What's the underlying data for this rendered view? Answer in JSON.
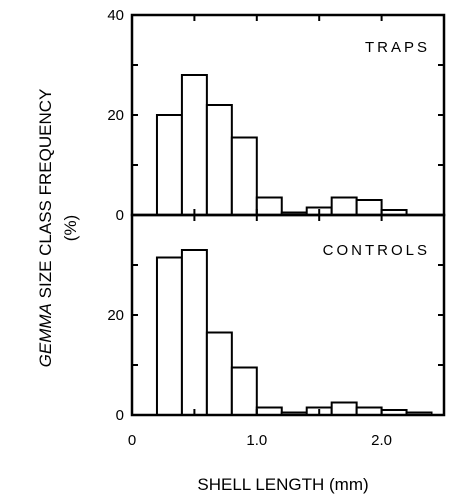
{
  "chart_data": [
    {
      "type": "bar",
      "panel_label": "TRAPS",
      "x_bin_starts": [
        0.2,
        0.4,
        0.6,
        0.8,
        1.0,
        1.2,
        1.4,
        1.6,
        1.8,
        2.0,
        2.2
      ],
      "bin_width": 0.2,
      "values": [
        20,
        28,
        22,
        15.5,
        3.5,
        0.5,
        1.5,
        3.5,
        3,
        1,
        0
      ],
      "ylim": [
        0,
        40
      ],
      "yticks": [
        "0",
        "20",
        "40"
      ]
    },
    {
      "type": "bar",
      "panel_label": "CONTROLS",
      "x_bin_starts": [
        0.2,
        0.4,
        0.6,
        0.8,
        1.0,
        1.2,
        1.4,
        1.6,
        1.8,
        2.0,
        2.2
      ],
      "bin_width": 0.2,
      "values": [
        31.5,
        33,
        16.5,
        9.5,
        1.5,
        0.5,
        1.5,
        2.5,
        1.5,
        1,
        0.5
      ],
      "ylim": [
        0,
        40
      ],
      "yticks": [
        "0",
        "20"
      ]
    }
  ],
  "shared": {
    "xlim": [
      0,
      2.5
    ],
    "xticks": [
      "0",
      "1.0",
      "2.0"
    ],
    "xlabel": "SHELL LENGTH (mm)",
    "ylabel_italic": "GEMMA",
    "ylabel_rest": " SIZE CLASS FREQUENCY",
    "ylabel_line2": "(%)"
  }
}
